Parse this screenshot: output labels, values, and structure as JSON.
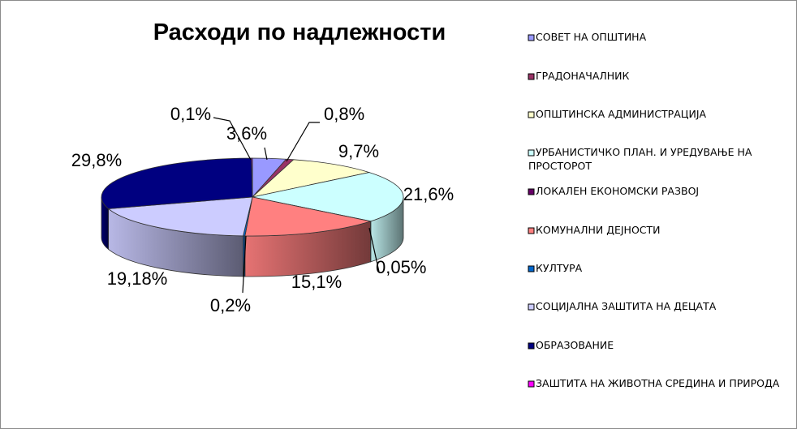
{
  "chart_data": {
    "type": "pie",
    "title": "Расходи по надлежности",
    "legend_position": "right",
    "slices": [
      {
        "name": "СОВЕТ НА ОПШТИНА",
        "label": "3,6%",
        "value": 3.6,
        "color": "#9999ff"
      },
      {
        "name": "ГРАДОНАЧАЛНИК",
        "label": "0,8%",
        "value": 0.8,
        "color": "#993366"
      },
      {
        "name": "ОПШТИНСКА АДМИНИСТРАЦИЈА",
        "label": "9,7%",
        "value": 9.7,
        "color": "#ffffcc"
      },
      {
        "name": "УРБАНИСТИЧКО ПЛАН. И УРЕДУВАЊЕ НА ПРОСТОРОТ",
        "label": "21,6%",
        "value": 21.6,
        "color": "#ccffff"
      },
      {
        "name": "ЛОКАЛЕН ЕКОНОМСКИ РАЗВОЈ",
        "label": "0,05%",
        "value": 0.05,
        "color": "#660066"
      },
      {
        "name": "КОМУНАЛНИ ДЕЈНОСТИ",
        "label": "15,1%",
        "value": 15.1,
        "color": "#ff8080"
      },
      {
        "name": "КУЛТУРА",
        "label": "0,2%",
        "value": 0.2,
        "color": "#0066cc"
      },
      {
        "name": "СОЦИЈАЛНА ЗАШТИТА НА ДЕЦАТА",
        "label": "19,18%",
        "value": 19.18,
        "color": "#ccccff"
      },
      {
        "name": "ОБРАЗОВАНИЕ",
        "label": "29,8%",
        "value": 29.8,
        "color": "#000080"
      },
      {
        "name": "ЗАШТИТА НА ЖИВОТНА СРЕДИНА И ПРИРОДА",
        "label": "0,1%",
        "value": 0.1,
        "color": "#ff00ff"
      }
    ]
  }
}
